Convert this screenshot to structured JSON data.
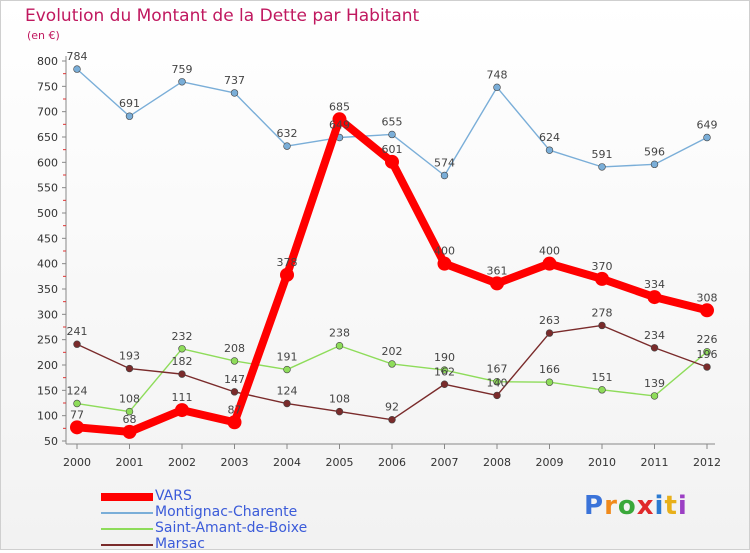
{
  "chart_data": {
    "type": "line",
    "title": "Evolution du Montant de la Dette par Habitant",
    "unit_label": "(en €)",
    "x": [
      "2000",
      "2001",
      "2002",
      "2003",
      "2004",
      "2005",
      "2006",
      "2007",
      "2008",
      "2009",
      "2010",
      "2011",
      "2012"
    ],
    "ylim": [
      50,
      800
    ],
    "yticks": [
      50,
      100,
      150,
      200,
      250,
      300,
      350,
      400,
      450,
      500,
      550,
      600,
      650,
      700,
      750,
      800
    ],
    "grid": false,
    "legend_position": "bottom-left",
    "series": [
      {
        "name": "VARS",
        "color": "#ff0000",
        "values": [
          77,
          68,
          111,
          87,
          378,
          685,
          601,
          400,
          361,
          400,
          370,
          334,
          308
        ]
      },
      {
        "name": "Montignac-Charente",
        "color": "#7aaed8",
        "values": [
          784,
          691,
          759,
          737,
          632,
          649,
          655,
          574,
          748,
          624,
          591,
          596,
          649
        ]
      },
      {
        "name": "Saint-Amant-de-Boixe",
        "color": "#8edc5a",
        "values": [
          124,
          108,
          232,
          208,
          191,
          238,
          202,
          190,
          167,
          166,
          151,
          139,
          226
        ]
      },
      {
        "name": "Marsac",
        "color": "#7a2b2b",
        "values": [
          241,
          193,
          182,
          147,
          124,
          108,
          92,
          162,
          140,
          263,
          278,
          234,
          196
        ]
      }
    ],
    "data_labels": [
      {
        "series": 0,
        "values": [
          77,
          68,
          111,
          87,
          378,
          685,
          601,
          400,
          361,
          400,
          370,
          334,
          308
        ]
      },
      {
        "series": 1,
        "values": [
          784,
          691,
          759,
          737,
          632,
          649,
          655,
          574,
          748,
          624,
          591,
          596,
          649
        ]
      },
      {
        "series": 2,
        "values": [
          124,
          108,
          232,
          208,
          191,
          238,
          202,
          190,
          167,
          166,
          151,
          139,
          226
        ]
      },
      {
        "series": 3,
        "values": [
          241,
          193,
          182,
          147,
          124,
          108,
          92,
          162,
          140,
          263,
          278,
          234,
          196
        ]
      }
    ]
  },
  "logo": {
    "text": "Proxiti",
    "colors": [
      "#3a73d9",
      "#f08a1c",
      "#3aa83a",
      "#e0292b",
      "#2b7ad1",
      "#e8b01a",
      "#9c3fc4"
    ]
  }
}
